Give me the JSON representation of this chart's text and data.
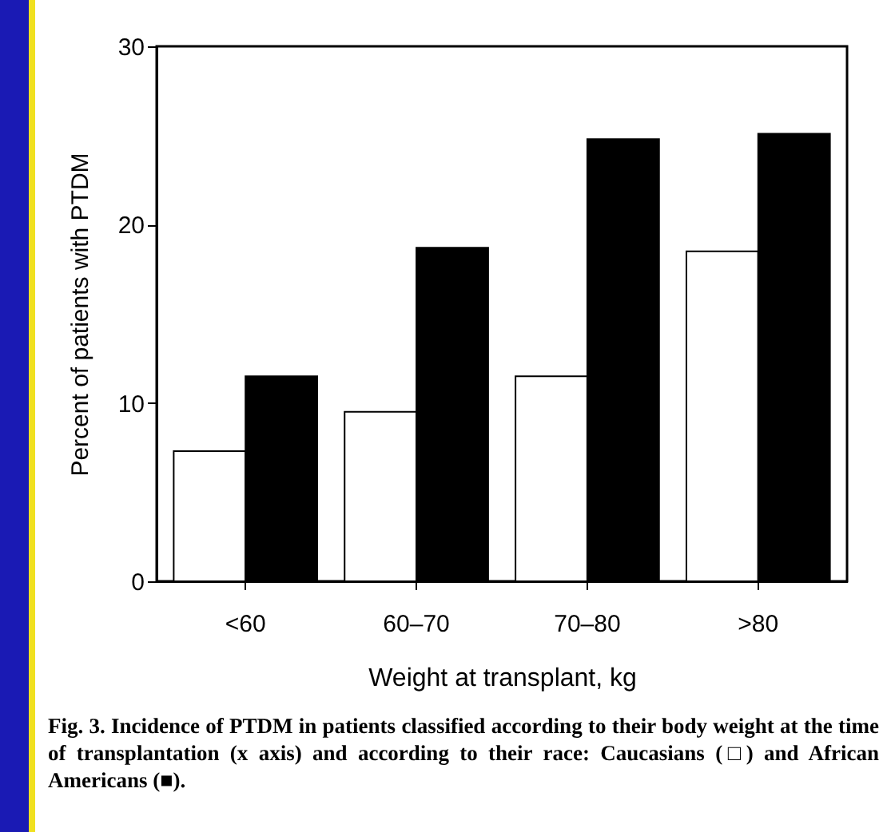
{
  "chart_data": {
    "type": "bar",
    "categories": [
      "<60",
      "60–70",
      "70–80",
      ">80"
    ],
    "series": [
      {
        "color": "#ffffff",
        "values": [
          7.3,
          9.5,
          11.5,
          18.5
        ]
      },
      {
        "color": "#000000",
        "values": [
          11.5,
          18.7,
          24.8,
          25.1
        ]
      }
    ],
    "xlabel": "Weight at transplant, kg",
    "ylabel": "Percent of patients with PTDM",
    "ylim": [
      0,
      30
    ],
    "yticks": [
      0,
      10,
      20,
      30
    ],
    "grid": false,
    "legend": false,
    "annotations": [
      "Fig. 3. Incidence of PTDM in patients classified according to their body weight at the time of transplantation (x axis) and according to their race: Caucasians (□) and African Americans (■)."
    ]
  }
}
